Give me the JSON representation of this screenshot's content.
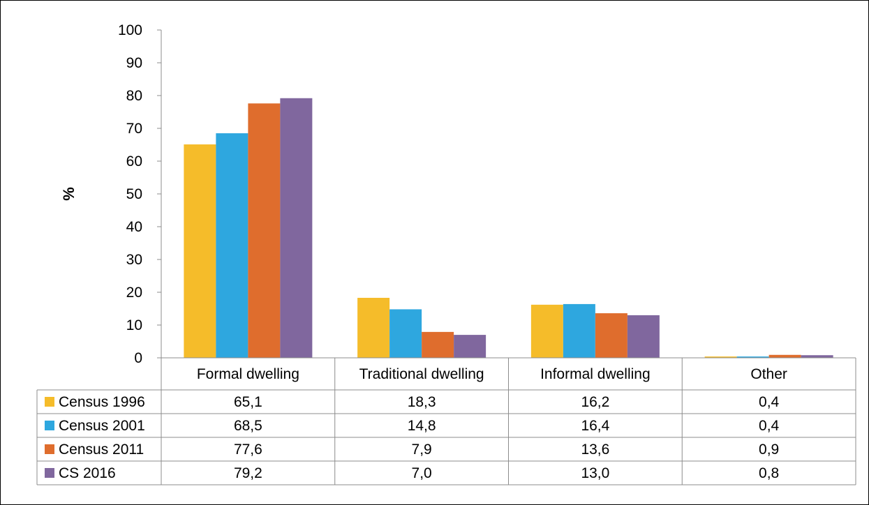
{
  "chart_data": {
    "type": "bar",
    "title": "",
    "xlabel": "",
    "ylabel": "%",
    "ylim": [
      0,
      100
    ],
    "yticks": [
      0,
      10,
      20,
      30,
      40,
      50,
      60,
      70,
      80,
      90,
      100
    ],
    "categories": [
      "Formal dwelling",
      "Traditional dwelling",
      "Informal dwelling",
      "Other"
    ],
    "series": [
      {
        "name": "Census 1996",
        "color": "#F5BC2A",
        "values": [
          65.1,
          18.3,
          16.2,
          0.4
        ],
        "labels": [
          "65,1",
          "18,3",
          "16,2",
          "0,4"
        ]
      },
      {
        "name": "Census 2001",
        "color": "#2EA7DF",
        "values": [
          68.5,
          14.8,
          16.4,
          0.4
        ],
        "labels": [
          "68,5",
          "14,8",
          "16,4",
          "0,4"
        ]
      },
      {
        "name": "Census 2011",
        "color": "#DF6D2D",
        "values": [
          77.6,
          7.9,
          13.6,
          0.9
        ],
        "labels": [
          "77,6",
          "7,9",
          "13,6",
          "0,9"
        ]
      },
      {
        "name": "CS 2016",
        "color": "#80679E",
        "values": [
          79.2,
          7.0,
          13.0,
          0.8
        ],
        "labels": [
          "79,2",
          "7,0",
          "13,0",
          "0,8"
        ]
      }
    ],
    "grid": false,
    "legend": "data table"
  }
}
